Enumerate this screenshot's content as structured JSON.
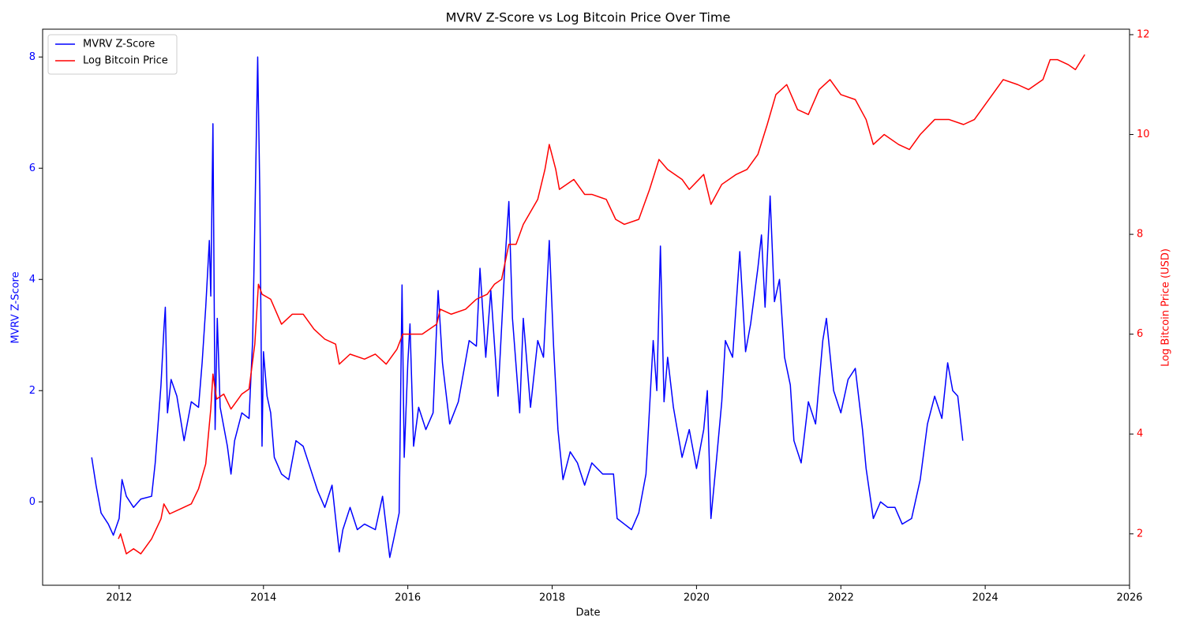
{
  "chart_data": {
    "type": "line",
    "title": "MVRV Z-Score vs Log Bitcoin Price Over Time",
    "xlabel": "Date",
    "ylabel": "MVRV Z-Score",
    "y2label": "Log Bitcoin Price (USD)",
    "xlim": [
      2010.94,
      2026.0
    ],
    "xticks": [
      2012,
      2014,
      2016,
      2018,
      2020,
      2022,
      2024,
      2026
    ],
    "ylim": [
      -1.5,
      8.5
    ],
    "yticks": [
      0,
      2,
      4,
      6,
      8
    ],
    "y2lim": [
      0.97,
      12.11
    ],
    "y2ticks": [
      2,
      4,
      6,
      8,
      10,
      12
    ],
    "legend": "upper left",
    "grid": false,
    "series": [
      {
        "name": "MVRV Z-Score",
        "color": "#0000ff",
        "axis": "y",
        "x": [
          2011.62,
          2011.68,
          2011.75,
          2011.85,
          2011.92,
          2012.0,
          2012.04,
          2012.1,
          2012.2,
          2012.3,
          2012.45,
          2012.5,
          2012.58,
          2012.62,
          2012.64,
          2012.67,
          2012.72,
          2012.8,
          2012.9,
          2013.0,
          2013.1,
          2013.15,
          2013.2,
          2013.25,
          2013.27,
          2013.3,
          2013.33,
          2013.36,
          2013.4,
          2013.5,
          2013.55,
          2013.6,
          2013.7,
          2013.8,
          2013.85,
          2013.88,
          2013.92,
          2013.95,
          2013.98,
          2014.0,
          2014.05,
          2014.1,
          2014.15,
          2014.25,
          2014.35,
          2014.45,
          2014.55,
          2014.65,
          2014.75,
          2014.85,
          2014.95,
          2015.05,
          2015.1,
          2015.2,
          2015.3,
          2015.4,
          2015.55,
          2015.65,
          2015.75,
          2015.8,
          2015.88,
          2015.92,
          2015.95,
          2016.0,
          2016.03,
          2016.08,
          2016.15,
          2016.25,
          2016.35,
          2016.42,
          2016.48,
          2016.58,
          2016.7,
          2016.85,
          2016.95,
          2017.0,
          2017.08,
          2017.15,
          2017.25,
          2017.35,
          2017.4,
          2017.45,
          2017.55,
          2017.6,
          2017.7,
          2017.8,
          2017.88,
          2017.96,
          2018.02,
          2018.08,
          2018.15,
          2018.25,
          2018.35,
          2018.45,
          2018.55,
          2018.7,
          2018.85,
          2018.9,
          2019.0,
          2019.1,
          2019.2,
          2019.3,
          2019.4,
          2019.45,
          2019.5,
          2019.55,
          2019.6,
          2019.68,
          2019.8,
          2019.9,
          2020.0,
          2020.1,
          2020.15,
          2020.2,
          2020.28,
          2020.35,
          2020.4,
          2020.5,
          2020.6,
          2020.68,
          2020.75,
          2020.85,
          2020.9,
          2020.95,
          2021.02,
          2021.08,
          2021.15,
          2021.22,
          2021.3,
          2021.35,
          2021.45,
          2021.55,
          2021.65,
          2021.75,
          2021.8,
          2021.9,
          2022.0,
          2022.1,
          2022.2,
          2022.3,
          2022.35,
          2022.45,
          2022.55,
          2022.65,
          2022.75,
          2022.85,
          2022.98,
          2023.1,
          2023.2,
          2023.3,
          2023.4,
          2023.48,
          2023.55,
          2023.62,
          2023.69
        ],
        "values": [
          0.8,
          0.3,
          -0.2,
          -0.4,
          -0.6,
          -0.3,
          0.4,
          0.1,
          -0.1,
          0.05,
          0.1,
          0.7,
          2.1,
          3.1,
          3.5,
          1.6,
          2.2,
          1.9,
          1.1,
          1.8,
          1.7,
          2.5,
          3.5,
          4.7,
          3.7,
          6.8,
          1.3,
          3.3,
          1.7,
          1.0,
          0.5,
          1.1,
          1.6,
          1.5,
          2.9,
          5.0,
          8.0,
          5.5,
          1.0,
          2.7,
          1.9,
          1.6,
          0.8,
          0.5,
          0.4,
          1.1,
          1.0,
          0.6,
          0.2,
          -0.1,
          0.3,
          -0.9,
          -0.5,
          -0.1,
          -0.5,
          -0.4,
          -0.5,
          0.1,
          -1.0,
          -0.7,
          -0.2,
          3.9,
          0.8,
          2.5,
          3.2,
          1.0,
          1.7,
          1.3,
          1.6,
          3.8,
          2.5,
          1.4,
          1.8,
          2.9,
          2.8,
          4.2,
          2.6,
          3.8,
          1.9,
          4.4,
          5.4,
          3.3,
          1.6,
          3.3,
          1.7,
          2.9,
          2.6,
          4.7,
          2.8,
          1.3,
          0.4,
          0.9,
          0.7,
          0.3,
          0.7,
          0.5,
          0.5,
          -0.3,
          -0.4,
          -0.5,
          -0.2,
          0.5,
          2.9,
          2.0,
          4.6,
          1.8,
          2.6,
          1.7,
          0.8,
          1.3,
          0.6,
          1.3,
          2.0,
          -0.3,
          0.8,
          1.8,
          2.9,
          2.6,
          4.5,
          2.7,
          3.2,
          4.2,
          4.8,
          3.5,
          5.5,
          3.6,
          4.0,
          2.6,
          2.1,
          1.1,
          0.7,
          1.8,
          1.4,
          2.9,
          3.3,
          2.0,
          1.6,
          2.2,
          2.4,
          1.3,
          0.6,
          -0.3,
          0.0,
          -0.1,
          -0.1,
          -0.4,
          -0.3,
          0.4,
          1.4,
          1.9,
          1.5,
          2.5,
          2.0,
          1.9,
          1.1
        ]
      },
      {
        "name": "Log Bitcoin Price",
        "color": "#ff0000",
        "axis": "y2",
        "x": [
          2011.99,
          2012.02,
          2012.1,
          2012.2,
          2012.3,
          2012.45,
          2012.58,
          2012.62,
          2012.7,
          2012.85,
          2013.0,
          2013.1,
          2013.2,
          2013.27,
          2013.3,
          2013.35,
          2013.45,
          2013.55,
          2013.7,
          2013.8,
          2013.88,
          2013.93,
          2013.98,
          2014.1,
          2014.25,
          2014.4,
          2014.55,
          2014.7,
          2014.85,
          2015.0,
          2015.05,
          2015.2,
          2015.4,
          2015.55,
          2015.7,
          2015.85,
          2015.93,
          2016.0,
          2016.2,
          2016.4,
          2016.45,
          2016.6,
          2016.8,
          2016.95,
          2017.1,
          2017.2,
          2017.3,
          2017.4,
          2017.5,
          2017.6,
          2017.8,
          2017.9,
          2017.96,
          2018.05,
          2018.1,
          2018.3,
          2018.45,
          2018.55,
          2018.75,
          2018.88,
          2019.0,
          2019.2,
          2019.35,
          2019.48,
          2019.6,
          2019.8,
          2019.9,
          2020.1,
          2020.2,
          2020.35,
          2020.55,
          2020.7,
          2020.85,
          2020.98,
          2021.1,
          2021.25,
          2021.4,
          2021.55,
          2021.7,
          2021.85,
          2022.0,
          2022.2,
          2022.35,
          2022.45,
          2022.6,
          2022.8,
          2022.95,
          2023.1,
          2023.3,
          2023.5,
          2023.7,
          2023.85,
          2024.0,
          2024.15,
          2024.25,
          2024.45,
          2024.6,
          2024.8,
          2024.9,
          2025.0,
          2025.15,
          2025.25,
          2025.38
        ],
        "values": [
          1.9,
          2.0,
          1.6,
          1.7,
          1.6,
          1.9,
          2.3,
          2.6,
          2.4,
          2.5,
          2.6,
          2.9,
          3.4,
          4.5,
          5.2,
          4.7,
          4.8,
          4.5,
          4.8,
          4.9,
          5.8,
          7.0,
          6.8,
          6.7,
          6.2,
          6.4,
          6.4,
          6.1,
          5.9,
          5.8,
          5.4,
          5.6,
          5.5,
          5.6,
          5.4,
          5.7,
          6.0,
          6.0,
          6.0,
          6.2,
          6.5,
          6.4,
          6.5,
          6.7,
          6.8,
          7.0,
          7.1,
          7.8,
          7.8,
          8.2,
          8.7,
          9.3,
          9.8,
          9.3,
          8.9,
          9.1,
          8.8,
          8.8,
          8.7,
          8.3,
          8.2,
          8.3,
          8.9,
          9.5,
          9.3,
          9.1,
          8.9,
          9.2,
          8.6,
          9.0,
          9.2,
          9.3,
          9.6,
          10.2,
          10.8,
          11.0,
          10.5,
          10.4,
          10.9,
          11.1,
          10.8,
          10.7,
          10.3,
          9.8,
          10.0,
          9.8,
          9.7,
          10.0,
          10.3,
          10.3,
          10.2,
          10.3,
          10.6,
          10.9,
          11.1,
          11.0,
          10.9,
          11.1,
          11.5,
          11.5,
          11.4,
          11.3,
          11.6
        ]
      }
    ]
  }
}
